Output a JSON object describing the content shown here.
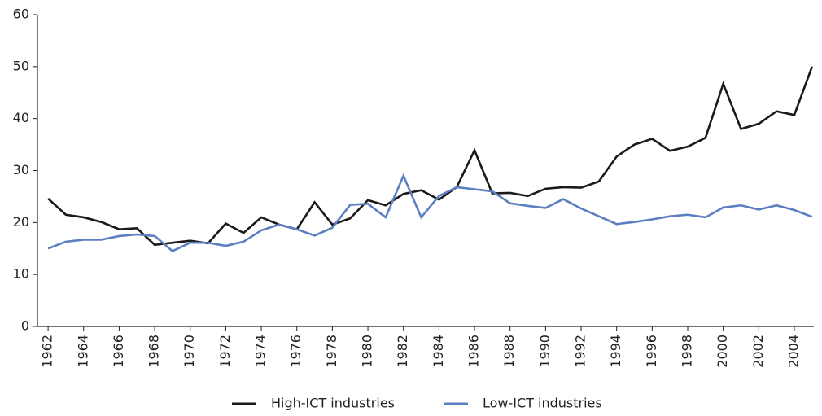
{
  "chart_data": {
    "type": "line",
    "x": [
      1962,
      1963,
      1964,
      1965,
      1966,
      1967,
      1968,
      1969,
      1970,
      1971,
      1972,
      1973,
      1974,
      1975,
      1976,
      1977,
      1978,
      1979,
      1980,
      1981,
      1982,
      1983,
      1984,
      1985,
      1986,
      1987,
      1988,
      1989,
      1990,
      1991,
      1992,
      1993,
      1994,
      1995,
      1996,
      1997,
      1998,
      1999,
      2000,
      2001,
      2002,
      2003,
      2004,
      2005
    ],
    "series": [
      {
        "name": "High-ICT industries",
        "color": "#1a1a1a",
        "values": [
          24.6,
          21.5,
          21.0,
          20.1,
          18.7,
          18.9,
          15.7,
          16.1,
          16.5,
          16.0,
          19.8,
          18.0,
          21.0,
          19.6,
          18.7,
          23.9,
          19.6,
          20.8,
          24.3,
          23.3,
          25.5,
          26.2,
          24.4,
          26.8,
          33.9,
          25.6,
          25.7,
          25.1,
          26.5,
          26.8,
          26.7,
          27.9,
          32.7,
          35.0,
          36.1,
          33.8,
          34.6,
          36.3,
          46.7,
          38.0,
          39.0,
          41.4,
          40.7,
          50.0
        ]
      },
      {
        "name": "Low-ICT industries",
        "color": "#5b7fc0",
        "values": [
          15.0,
          16.3,
          16.7,
          16.7,
          17.4,
          17.7,
          17.4,
          14.5,
          16.1,
          16.1,
          15.5,
          16.3,
          18.5,
          19.6,
          18.7,
          17.5,
          19.0,
          23.4,
          23.6,
          21.0,
          29.0,
          21.0,
          25.1,
          26.8,
          26.4,
          26.0,
          23.7,
          23.2,
          22.8,
          24.5,
          22.7,
          21.2,
          19.7,
          20.1,
          20.6,
          21.2,
          21.5,
          21.0,
          22.9,
          23.3,
          22.5,
          23.3,
          22.4,
          21.1
        ]
      }
    ],
    "xlim": [
      1961.4,
      2005.1
    ],
    "xticks": [
      1962,
      1964,
      1966,
      1968,
      1970,
      1972,
      1974,
      1976,
      1978,
      1980,
      1982,
      1984,
      1986,
      1988,
      1990,
      1992,
      1994,
      1996,
      1998,
      2000,
      2002,
      2004
    ],
    "ylim": [
      0,
      60
    ],
    "yticks": [
      0,
      10,
      20,
      30,
      40,
      50,
      60
    ],
    "legend": "bottom"
  }
}
